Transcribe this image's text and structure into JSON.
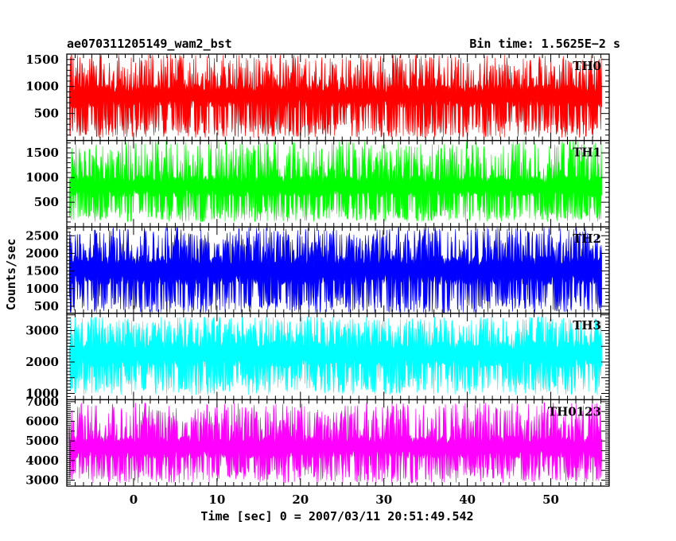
{
  "header": {
    "left_title": "ae070311205149_wam2_bst",
    "right_title": "Bin time: 1.5625E−2 s"
  },
  "chart_data": {
    "type": "line",
    "title": "ae070311205149_wam2_bst",
    "subtitle": "Bin time: 1.5625E−2 s",
    "xlabel": "Time [sec] 0 = 2007/03/11 20:51:49.542",
    "ylabel": "Counts/sec",
    "xlim": [
      -8,
      57
    ],
    "x_range": [
      -7.7,
      56.1
    ],
    "x_ticks": [
      0,
      10,
      20,
      30,
      40,
      50
    ],
    "grid": false,
    "panels": [
      {
        "name": "TH0",
        "color": "#ff0000",
        "ylim": [
          0,
          1600
        ],
        "y_ticks": [
          500,
          1000,
          1500
        ],
        "base_range": [
          600,
          1050
        ],
        "low_range": [
          50,
          380
        ],
        "high_range": [
          1100,
          1600
        ]
      },
      {
        "name": "TH1",
        "color": "#00ff00",
        "ylim": [
          0,
          1750
        ],
        "y_ticks": [
          500,
          1000,
          1500
        ],
        "base_range": [
          600,
          1050
        ],
        "low_range": [
          100,
          400
        ],
        "high_range": [
          1100,
          1750
        ]
      },
      {
        "name": "TH2",
        "color": "#0000ff",
        "ylim": [
          300,
          2750
        ],
        "y_ticks": [
          500,
          1000,
          1500,
          2000,
          2500
        ],
        "base_range": [
          1100,
          1950
        ],
        "low_range": [
          300,
          800
        ],
        "high_range": [
          2050,
          2750
        ]
      },
      {
        "name": "TH3",
        "color": "#00ffff",
        "ylim": [
          800,
          3550
        ],
        "y_ticks": [
          1000,
          2000,
          3000
        ],
        "base_range": [
          1800,
          2700
        ],
        "low_range": [
          950,
          1600
        ],
        "high_range": [
          2800,
          3450
        ]
      },
      {
        "name": "TH0123",
        "color": "#ff00ff",
        "ylim": [
          2700,
          7100
        ],
        "y_ticks": [
          3000,
          4000,
          5000,
          6000,
          7000
        ],
        "base_range": [
          4100,
          5300
        ],
        "low_range": [
          2850,
          3800
        ],
        "high_range": [
          5500,
          6950
        ]
      }
    ]
  }
}
